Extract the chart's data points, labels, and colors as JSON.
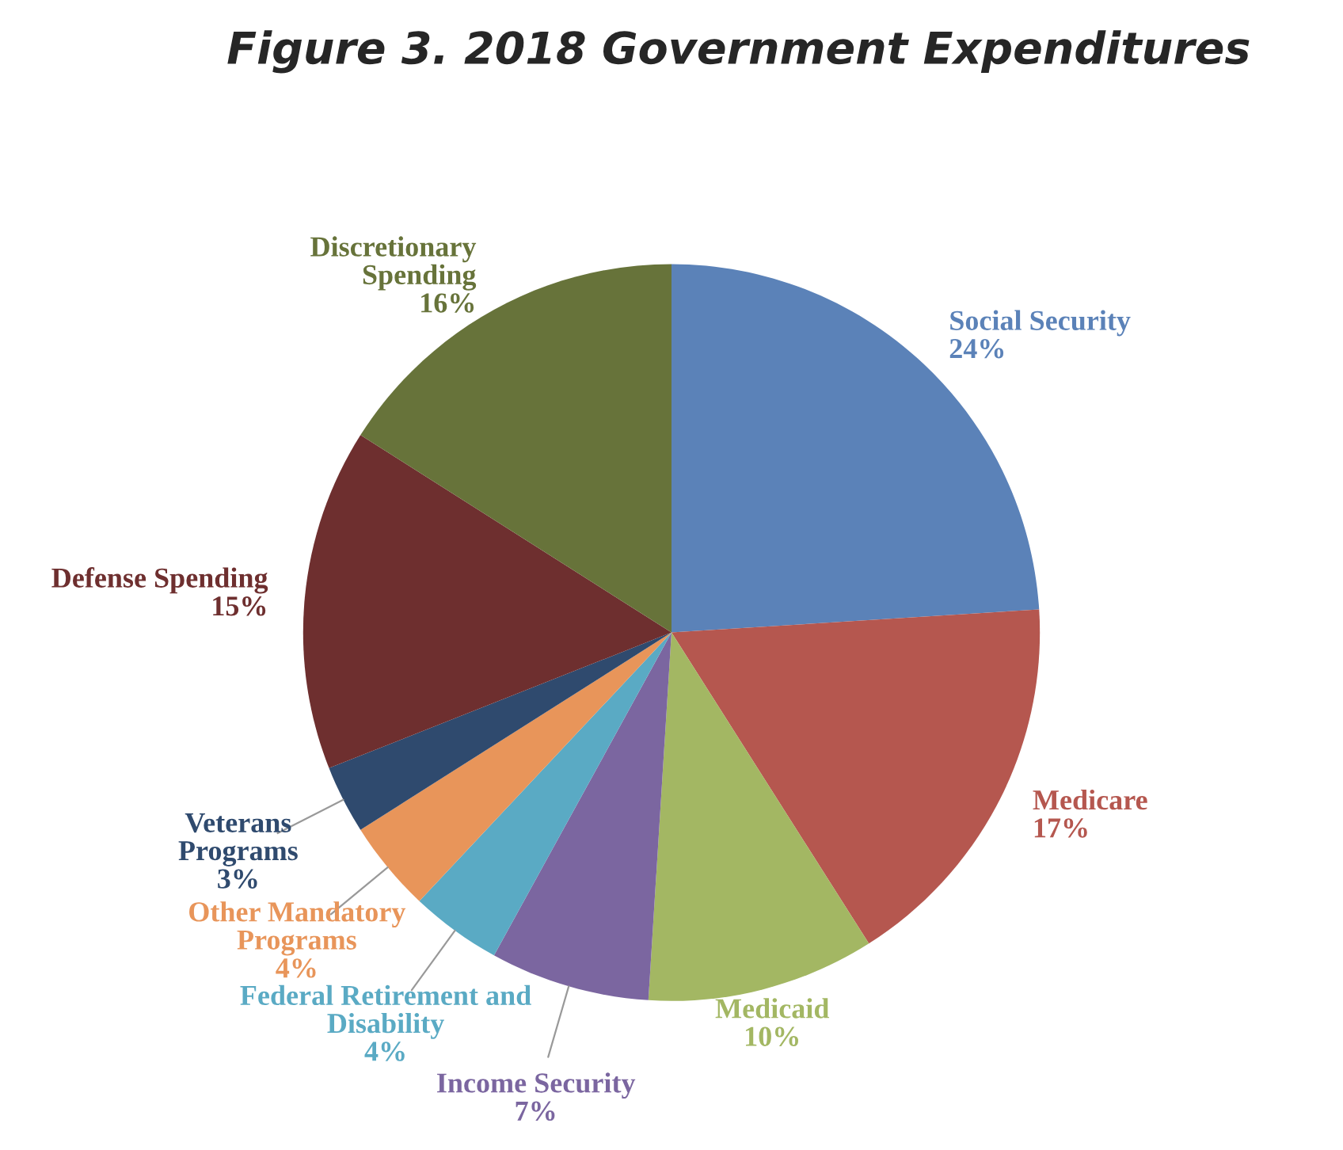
{
  "chart_data": {
    "type": "pie",
    "title": "Figure 3. 2018 Government Expenditures",
    "categories": [
      "Social Security",
      "Medicare",
      "Medicaid",
      "Income Security",
      "Federal Retirement and\nDisability",
      "Other Mandatory\nPrograms",
      "Veterans\nPrograms",
      "Defense Spending",
      "Discretionary\nSpending"
    ],
    "values": [
      24,
      17,
      10,
      7,
      4,
      4,
      3,
      15,
      16
    ],
    "value_labels": [
      "24%",
      "17%",
      "10%",
      "7%",
      "4%",
      "4%",
      "3%",
      "15%",
      "16%"
    ],
    "colors": [
      "#5b82b8",
      "#b5574f",
      "#a3b763",
      "#7b66a0",
      "#5aaac4",
      "#e8955a",
      "#2f4a6e",
      "#6e2f2f",
      "#67733a"
    ]
  }
}
